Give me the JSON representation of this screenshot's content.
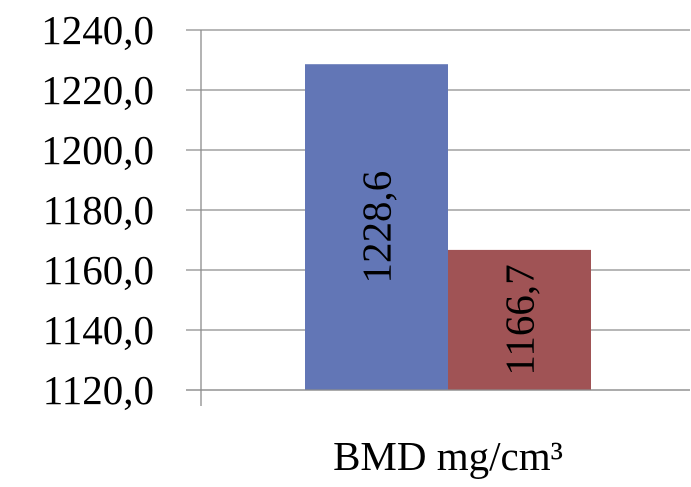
{
  "chart_data": {
    "type": "bar",
    "categories": [
      "BMD mg/cm³"
    ],
    "series": [
      {
        "values": [
          1228.6
        ],
        "color": "#6276B6",
        "label": "1228,6"
      },
      {
        "values": [
          1166.7
        ],
        "color": "#A05355",
        "label": "1166,7"
      }
    ],
    "ylim": [
      1120,
      1240
    ],
    "ytick_step": 20,
    "ytick_labels": [
      "1120,0",
      "1140,0",
      "1160,0",
      "1180,0",
      "1200,0",
      "1220,0",
      "1240,0"
    ],
    "grid": true,
    "data_label_orientation": "vertical"
  }
}
